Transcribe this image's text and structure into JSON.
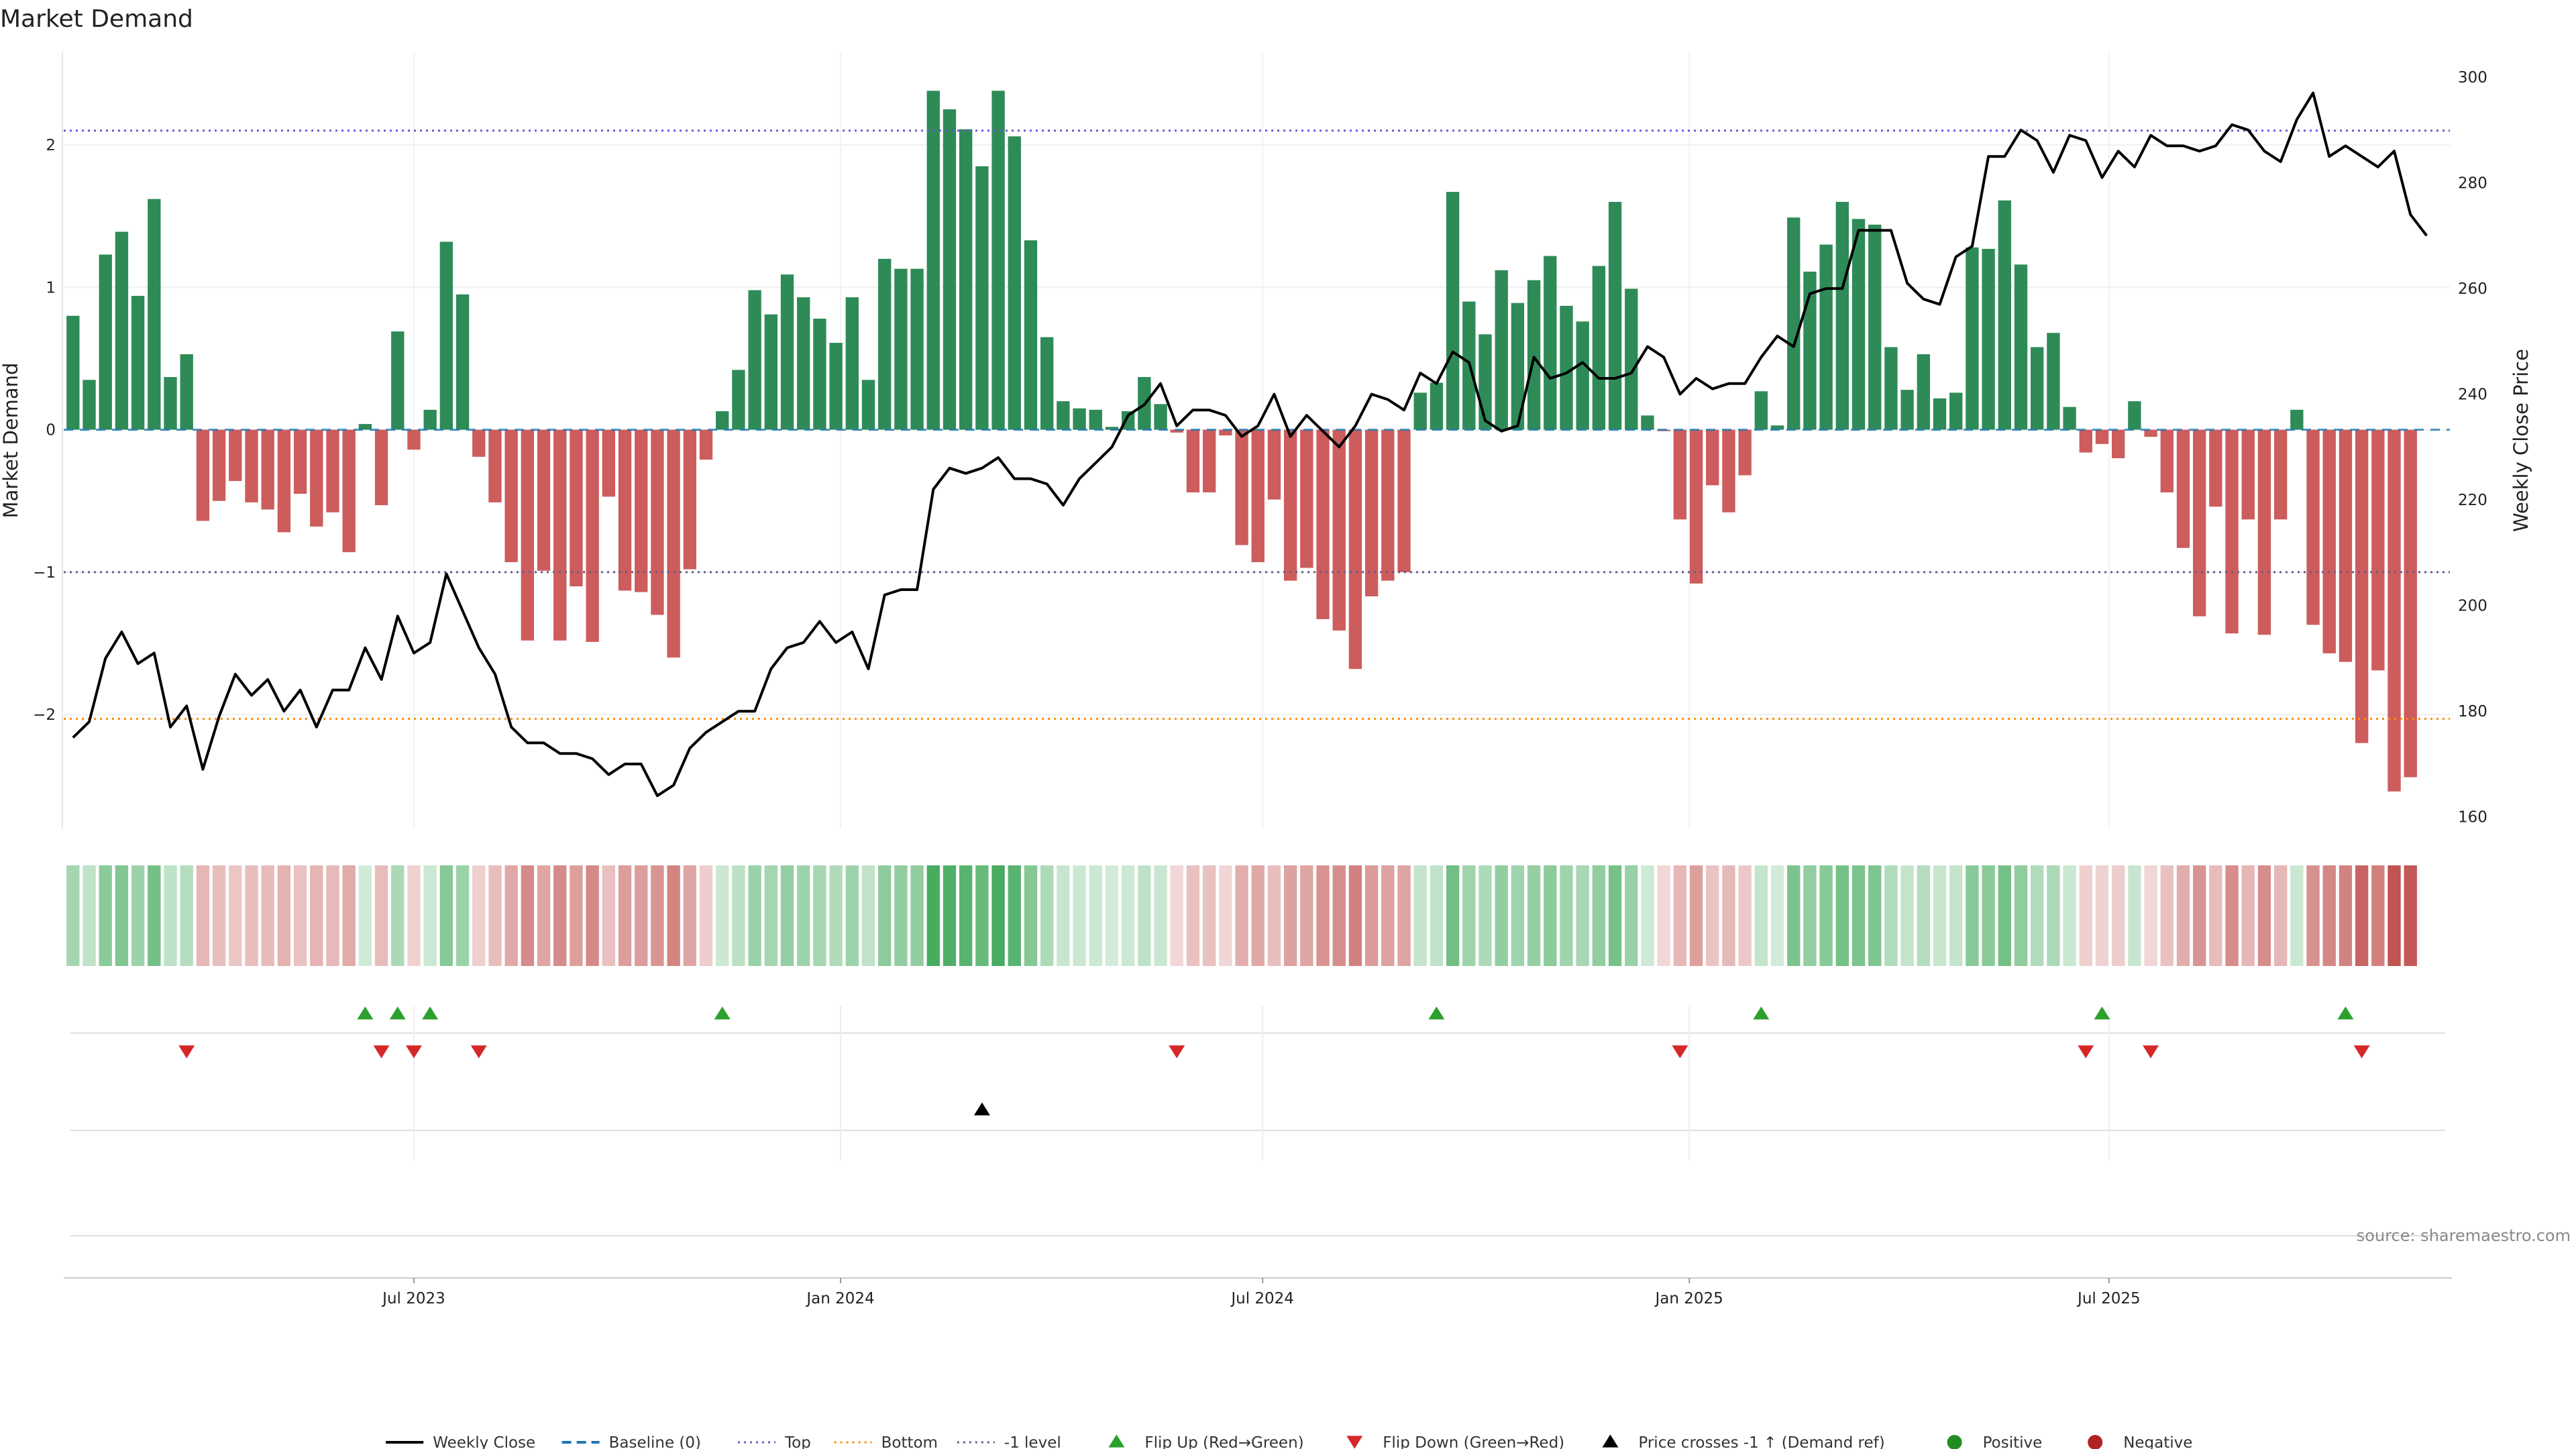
{
  "chart_data": {
    "type": "bar",
    "title": "Market Demand",
    "ylabel": "Market Demand",
    "y2label": "Weekly Close Price",
    "ylim": [
      -2.8,
      2.65
    ],
    "y2lim": [
      157.8,
      304.7
    ],
    "yticks": [
      {
        "v": 2,
        "label": "2"
      },
      {
        "v": 1,
        "label": "1"
      },
      {
        "v": 0,
        "label": "0"
      },
      {
        "v": -1,
        "label": "−1"
      },
      {
        "v": -2,
        "label": "−2"
      }
    ],
    "y2ticks": [
      {
        "v": 300,
        "label": "300"
      },
      {
        "v": 280,
        "label": "280"
      },
      {
        "v": 260,
        "label": "260"
      },
      {
        "v": 240,
        "label": "240"
      },
      {
        "v": 220,
        "label": "220"
      },
      {
        "v": 200,
        "label": "200"
      },
      {
        "v": 180,
        "label": "180"
      },
      {
        "v": 160,
        "label": "160"
      }
    ],
    "date_range": [
      "2023-01-31",
      "2025-11-25"
    ],
    "xticks": [
      {
        "date": "2023-07-01",
        "label": "Jul 2023"
      },
      {
        "date": "2024-01-01",
        "label": "Jan 2024"
      },
      {
        "date": "2024-07-01",
        "label": "Jul 2024"
      },
      {
        "date": "2025-01-01",
        "label": "Jan 2025"
      },
      {
        "date": "2025-07-01",
        "label": "Jul 2025"
      }
    ],
    "first_week": "2023-02-04",
    "reference_lines": {
      "top": 2.1,
      "bottom": -2.03,
      "minus_one": -1.0,
      "baseline": 0
    },
    "demand": [
      0.8,
      0.35,
      1.23,
      1.39,
      0.94,
      1.62,
      0.37,
      0.53,
      -0.64,
      -0.5,
      -0.36,
      -0.51,
      -0.56,
      -0.72,
      -0.45,
      -0.68,
      -0.58,
      -0.86,
      0.04,
      -0.53,
      0.69,
      -0.14,
      0.14,
      1.32,
      0.95,
      -0.19,
      -0.51,
      -0.93,
      -1.48,
      -0.99,
      -1.48,
      -1.1,
      -1.49,
      -0.47,
      -1.13,
      -1.14,
      -1.3,
      -1.6,
      -0.98,
      -0.21,
      0.13,
      0.42,
      0.98,
      0.81,
      1.09,
      0.93,
      0.78,
      0.61,
      0.93,
      0.35,
      1.2,
      1.13,
      1.13,
      2.38,
      2.25,
      2.11,
      1.85,
      2.38,
      2.06,
      1.33,
      0.65,
      0.2,
      0.15,
      0.14,
      0.02,
      0.13,
      0.37,
      0.18,
      -0.02,
      -0.44,
      -0.44,
      -0.04,
      -0.81,
      -0.93,
      -0.49,
      -1.06,
      -0.97,
      -1.33,
      -1.41,
      -1.68,
      -1.17,
      -1.06,
      -1.0,
      0.26,
      0.33,
      1.67,
      0.9,
      0.67,
      1.12,
      0.89,
      1.05,
      1.22,
      0.87,
      0.76,
      1.15,
      1.6,
      0.99,
      0.1,
      -0.01,
      -0.63,
      -1.08,
      -0.39,
      -0.58,
      -0.32,
      0.27,
      0.03,
      1.49,
      1.11,
      1.3,
      1.6,
      1.48,
      1.44,
      0.58,
      0.28,
      0.53,
      0.22,
      0.26,
      1.28,
      1.27,
      1.61,
      1.16,
      0.58,
      0.68,
      0.16,
      -0.16,
      -0.1,
      -0.2,
      0.2,
      -0.05,
      -0.44,
      -0.83,
      -1.31,
      -0.54,
      -1.43,
      -0.63,
      -1.44,
      -0.63,
      0.14,
      -1.37,
      -1.57,
      -1.63,
      -2.2,
      -1.69,
      -2.54,
      -2.44
    ],
    "close": [
      175,
      178,
      190,
      195,
      189,
      191,
      177,
      181,
      169,
      179,
      187,
      183,
      186,
      180,
      184,
      177,
      184,
      184,
      192,
      186,
      198,
      191,
      193,
      206,
      199,
      192,
      187,
      177,
      174,
      174,
      172,
      172,
      171,
      168,
      170,
      170,
      164,
      166,
      173,
      176,
      178,
      180,
      180,
      188,
      192,
      193,
      197,
      193,
      195,
      188,
      202,
      203,
      203,
      222,
      226,
      225,
      226,
      228,
      224,
      224,
      223,
      219,
      224,
      227,
      230,
      236,
      238,
      242,
      234,
      237,
      237,
      236,
      232,
      234,
      240,
      232,
      236,
      233,
      230,
      234,
      240,
      239,
      237,
      244,
      242,
      248,
      246,
      235,
      233,
      234,
      247,
      243,
      244,
      246,
      243,
      243,
      244,
      249,
      247,
      240,
      243,
      241,
      242,
      242,
      247,
      251,
      249,
      259,
      260,
      260,
      271,
      271,
      271,
      261,
      258,
      257,
      266,
      268,
      285,
      285,
      290,
      288,
      282,
      289,
      288,
      281,
      286,
      283,
      289,
      287,
      287,
      286,
      287,
      291,
      290,
      286,
      284,
      292,
      297,
      285,
      287,
      285,
      283,
      286,
      274,
      270
    ],
    "flip_up": [
      "2023-06-10",
      "2023-06-24",
      "2023-07-08",
      "2023-11-11",
      "2024-09-14",
      "2025-02-01",
      "2025-06-28",
      "2025-10-11"
    ],
    "flip_down": [
      "2023-03-25",
      "2023-06-17",
      "2023-07-01",
      "2023-07-29",
      "2024-05-25",
      "2024-12-28",
      "2025-06-21",
      "2025-07-19",
      "2025-10-18"
    ],
    "price_cross": [
      "2024-03-02"
    ],
    "colors": {
      "positive": "#2e8b57",
      "negative": "#cd5c5c",
      "close_line": "#000000",
      "baseline": "#1f77b4",
      "top": "#6a5acd",
      "bottom": "#ff8c00",
      "minus_one": "#6a5a8d",
      "flip_up": "#2ca02c",
      "flip_down": "#d62728",
      "price_cross": "#000000",
      "legend_positive": "#228b22",
      "legend_negative": "#b22222"
    },
    "legend": {
      "placement": "bottom-center",
      "items": [
        {
          "label": "Weekly Close",
          "kind": "line",
          "key": "close_line"
        },
        {
          "label": "Baseline (0)",
          "kind": "dash",
          "key": "baseline"
        },
        {
          "label": "Top",
          "kind": "dot",
          "key": "top"
        },
        {
          "label": "Bottom",
          "kind": "dot",
          "key": "bottom"
        },
        {
          "label": "-1 level",
          "kind": "dot",
          "key": "minus_one"
        },
        {
          "label": "Flip Up (Red→Green)",
          "kind": "tri-up",
          "key": "flip_up"
        },
        {
          "label": "Flip Down (Green→Red)",
          "kind": "tri-down",
          "key": "flip_down"
        },
        {
          "label": "Price crosses -1 ↑ (Demand ref)",
          "kind": "tri-up",
          "key": "price_cross"
        },
        {
          "label": "Positive",
          "kind": "circle",
          "key": "legend_positive"
        },
        {
          "label": "Negative",
          "kind": "circle",
          "key": "legend_negative"
        }
      ]
    },
    "source": "source: sharemaestro.com"
  }
}
